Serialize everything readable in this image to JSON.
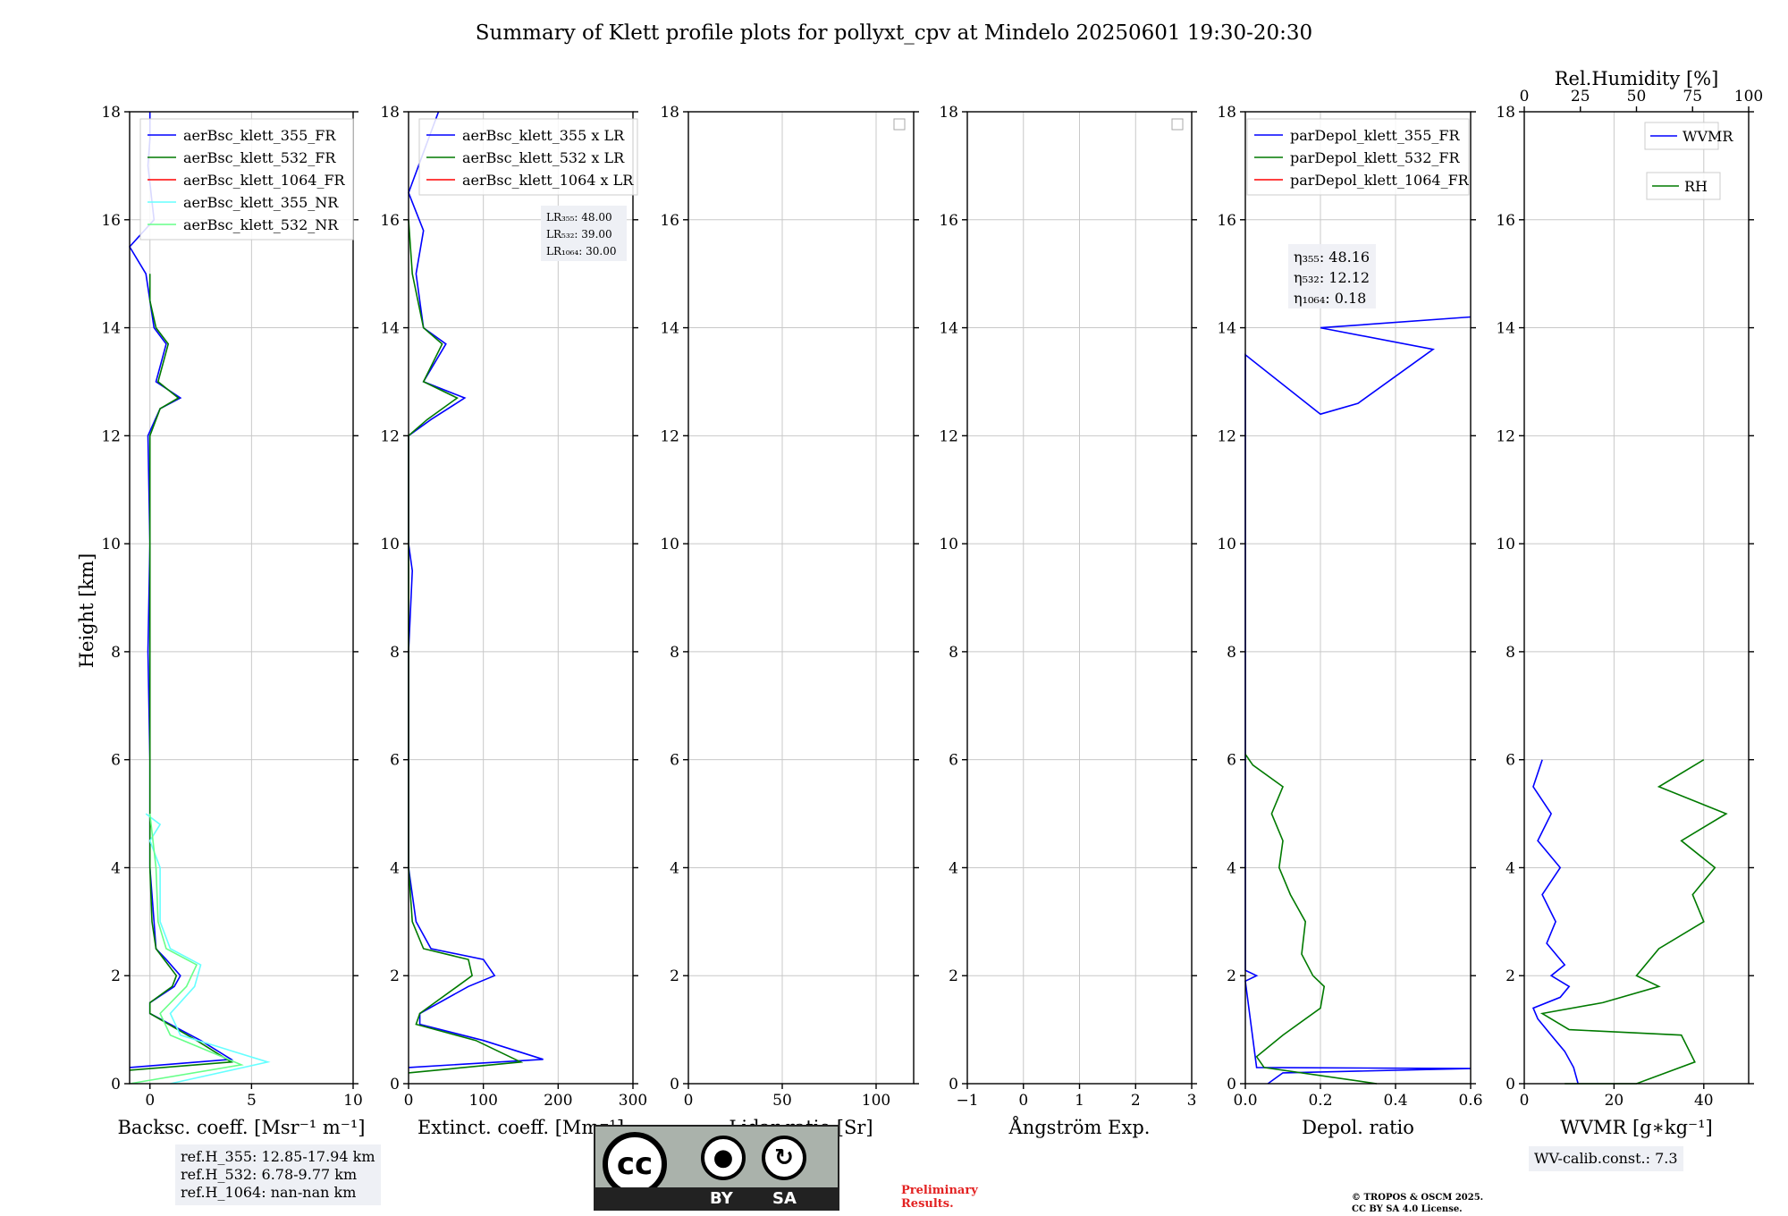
{
  "title": "Summary of Klett profile plots for pollyxt_cpv at Mindelo 20250601 19:30-20:30",
  "y_label": "Height [km]",
  "y_ticks": [
    "0",
    "2",
    "4",
    "6",
    "8",
    "10",
    "12",
    "14",
    "16",
    "18"
  ],
  "notes": {
    "ref_h": [
      "ref.H_355: 12.85-17.94 km",
      "ref.H_532: 6.78-9.77 km",
      "ref.H_1064: nan-nan km"
    ],
    "wv_calib": "WV-calib.const.: 7.3",
    "preliminary": [
      "Preliminary",
      "Results."
    ],
    "copyright": [
      "© TROPOS & OSCM 2025.",
      "CC BY SA 4.0 License."
    ]
  },
  "cc_logo": {
    "cc": "cc",
    "by": "BY",
    "sa": "SA"
  },
  "colors": {
    "blue": "#0000ff",
    "green": "#007a00",
    "red": "#ff0000",
    "cyan": "#66ffff",
    "lightgreen": "#66ff88",
    "grid": "#c8c8c8"
  },
  "chart_data": [
    {
      "type": "line",
      "xlabel": "Backsc. coeff. [Msr⁻¹ m⁻¹]",
      "xlim": [
        -1,
        10
      ],
      "xticks": [
        "0",
        "5",
        "10"
      ],
      "ylim": [
        0,
        18
      ],
      "legend": [
        "aerBsc_klett_355_FR",
        "aerBsc_klett_532_FR",
        "aerBsc_klett_1064_FR",
        "aerBsc_klett_355_NR",
        "aerBsc_klett_532_NR"
      ],
      "series": [
        {
          "name": "aerBsc_klett_355_FR",
          "color": "blue",
          "points": [
            [
              -1,
              0.3
            ],
            [
              4,
              0.45
            ],
            [
              2.5,
              0.8
            ],
            [
              0,
              1.3
            ],
            [
              0,
              1.5
            ],
            [
              1.2,
              1.8
            ],
            [
              1.5,
              2.0
            ],
            [
              0.8,
              2.3
            ],
            [
              0.3,
              2.5
            ],
            [
              0.2,
              3
            ],
            [
              0,
              4
            ],
            [
              0,
              5
            ],
            [
              0,
              6
            ],
            [
              -0.1,
              8
            ],
            [
              0,
              10
            ],
            [
              -0.1,
              12
            ],
            [
              0.5,
              12.5
            ],
            [
              1.5,
              12.7
            ],
            [
              0.3,
              13
            ],
            [
              0.8,
              13.7
            ],
            [
              0.2,
              14
            ],
            [
              -0.2,
              15
            ],
            [
              -1,
              15.5
            ],
            [
              0.2,
              16
            ],
            [
              -0.1,
              17
            ],
            [
              0,
              17.5
            ],
            [
              0,
              18
            ]
          ]
        },
        {
          "name": "aerBsc_klett_532_FR",
          "color": "green",
          "points": [
            [
              -1,
              0.25
            ],
            [
              4,
              0.4
            ],
            [
              2.3,
              0.8
            ],
            [
              0,
              1.3
            ],
            [
              0,
              1.5
            ],
            [
              1.1,
              1.8
            ],
            [
              1.3,
              2.0
            ],
            [
              0.7,
              2.3
            ],
            [
              0.3,
              2.5
            ],
            [
              0.1,
              3
            ],
            [
              0,
              4
            ],
            [
              0,
              6
            ],
            [
              0,
              8
            ],
            [
              0,
              10
            ],
            [
              0,
              12
            ],
            [
              0.5,
              12.5
            ],
            [
              1.4,
              12.7
            ],
            [
              0.4,
              13
            ],
            [
              0.9,
              13.7
            ],
            [
              0.3,
              14
            ],
            [
              0,
              14.5
            ],
            [
              0,
              15
            ]
          ]
        },
        {
          "name": "aerBsc_klett_355_NR",
          "color": "cyan",
          "points": [
            [
              1,
              0
            ],
            [
              5.8,
              0.4
            ],
            [
              1.5,
              0.9
            ],
            [
              1,
              1.3
            ],
            [
              2.2,
              1.8
            ],
            [
              2.5,
              2.2
            ],
            [
              1,
              2.5
            ],
            [
              0.5,
              3
            ],
            [
              0.5,
              4
            ],
            [
              0,
              4.5
            ],
            [
              0.5,
              4.8
            ],
            [
              -0.2,
              5
            ]
          ]
        },
        {
          "name": "aerBsc_klett_532_NR",
          "color": "lightgreen",
          "points": [
            [
              -1,
              0
            ],
            [
              4.5,
              0.35
            ],
            [
              1,
              0.9
            ],
            [
              0.5,
              1.3
            ],
            [
              1.8,
              1.8
            ],
            [
              2.3,
              2.2
            ],
            [
              0.8,
              2.5
            ],
            [
              0.4,
              3
            ],
            [
              0.3,
              4
            ],
            [
              0,
              5
            ]
          ]
        }
      ]
    },
    {
      "type": "line",
      "xlabel": "Extinct. coeff. [Mm⁻¹]",
      "xlim": [
        0,
        300
      ],
      "xticks": [
        "0",
        "100",
        "200",
        "300"
      ],
      "ylim": [
        0,
        18
      ],
      "legend": [
        "aerBsc_klett_355 x LR",
        "aerBsc_klett_532 x LR",
        "aerBsc_klett_1064 x LR"
      ],
      "lr_labels": [
        "LR₃₅₅: 48.00",
        "LR₅₃₂: 39.00",
        "LR₁₀₆₄: 30.00"
      ],
      "series": [
        {
          "name": "aerBsc_klett_355 x LR",
          "color": "blue",
          "points": [
            [
              0,
              0.3
            ],
            [
              180,
              0.45
            ],
            [
              100,
              0.8
            ],
            [
              15,
              1.1
            ],
            [
              15,
              1.3
            ],
            [
              80,
              1.8
            ],
            [
              115,
              2.0
            ],
            [
              100,
              2.3
            ],
            [
              30,
              2.5
            ],
            [
              10,
              3
            ],
            [
              0,
              4
            ],
            [
              0,
              6
            ],
            [
              0,
              8
            ],
            [
              5,
              9.5
            ],
            [
              0,
              10
            ],
            [
              0,
              12
            ],
            [
              30,
              12.3
            ],
            [
              75,
              12.7
            ],
            [
              20,
              13
            ],
            [
              50,
              13.7
            ],
            [
              20,
              14
            ],
            [
              10,
              15
            ],
            [
              20,
              15.8
            ],
            [
              0,
              16.5
            ],
            [
              40,
              18
            ]
          ]
        },
        {
          "name": "aerBsc_klett_532 x LR",
          "color": "green",
          "points": [
            [
              0,
              0.2
            ],
            [
              150,
              0.4
            ],
            [
              90,
              0.8
            ],
            [
              10,
              1.1
            ],
            [
              15,
              1.3
            ],
            [
              65,
              1.8
            ],
            [
              85,
              2.0
            ],
            [
              80,
              2.3
            ],
            [
              20,
              2.5
            ],
            [
              5,
              3
            ],
            [
              0,
              4
            ],
            [
              0,
              6
            ],
            [
              0,
              8
            ],
            [
              0,
              10
            ],
            [
              0,
              12
            ],
            [
              25,
              12.3
            ],
            [
              65,
              12.7
            ],
            [
              20,
              13
            ],
            [
              45,
              13.7
            ],
            [
              20,
              14
            ],
            [
              5,
              15
            ],
            [
              0,
              16
            ]
          ]
        }
      ]
    },
    {
      "type": "line",
      "xlabel": "Lidar ratio [Sr]",
      "xlim": [
        0,
        120
      ],
      "xticks": [
        "0",
        "50",
        "100"
      ],
      "ylim": [
        0,
        18
      ],
      "series": []
    },
    {
      "type": "line",
      "xlabel": "Ångström Exp.",
      "xlim": [
        -1,
        3
      ],
      "xticks": [
        "−1",
        "0",
        "1",
        "2",
        "3"
      ],
      "ylim": [
        0,
        18
      ],
      "series": []
    },
    {
      "type": "line",
      "xlabel": "Depol. ratio",
      "xlim": [
        0,
        0.6
      ],
      "xticks": [
        "0.0",
        "0.2",
        "0.4",
        "0.6"
      ],
      "ylim": [
        0,
        18
      ],
      "legend": [
        "parDepol_klett_355_FR",
        "parDepol_klett_532_FR",
        "parDepol_klett_1064_FR"
      ],
      "eta_labels": [
        "η₃₅₅: 48.16",
        "η₅₃₂: 12.12",
        "η₁₀₆₄: 0.18"
      ],
      "series": [
        {
          "name": "parDepol_klett_355_FR",
          "color": "blue",
          "points": [
            [
              0.06,
              0
            ],
            [
              0.1,
              0.2
            ],
            [
              0.6,
              0.28
            ],
            [
              0.03,
              0.3
            ],
            [
              0.0,
              1.9
            ],
            [
              0.03,
              2.0
            ],
            [
              0.0,
              2.1
            ],
            [
              0.0,
              13.5
            ],
            [
              0.2,
              12.4
            ],
            [
              0.3,
              12.6
            ],
            [
              0.5,
              13.6
            ],
            [
              0.2,
              14
            ],
            [
              0.6,
              14.2
            ]
          ]
        },
        {
          "name": "parDepol_klett_532_FR",
          "color": "green",
          "points": [
            [
              0.35,
              0
            ],
            [
              0.05,
              0.3
            ],
            [
              0.03,
              0.5
            ],
            [
              0.1,
              0.9
            ],
            [
              0.2,
              1.4
            ],
            [
              0.21,
              1.8
            ],
            [
              0.18,
              2.0
            ],
            [
              0.15,
              2.4
            ],
            [
              0.16,
              3
            ],
            [
              0.12,
              3.5
            ],
            [
              0.09,
              4
            ],
            [
              0.1,
              4.5
            ],
            [
              0.07,
              5
            ],
            [
              0.1,
              5.5
            ],
            [
              0.02,
              5.9
            ],
            [
              0.0,
              6.1
            ]
          ]
        }
      ]
    },
    {
      "type": "line",
      "xlabel": "WVMR [g∗kg⁻¹]",
      "xlim": [
        0,
        50
      ],
      "xticks": [
        "0",
        "20",
        "40"
      ],
      "x2label": "Rel.Humidity [%]",
      "x2lim": [
        0,
        100
      ],
      "x2ticks": [
        "0",
        "25",
        "50",
        "75",
        "100"
      ],
      "ylim": [
        0,
        18
      ],
      "legend": [
        "WVMR",
        "RH"
      ],
      "series": [
        {
          "name": "WVMR",
          "color": "blue",
          "points": [
            [
              12,
              0
            ],
            [
              11,
              0.3
            ],
            [
              9,
              0.6
            ],
            [
              6,
              0.9
            ],
            [
              3,
              1.2
            ],
            [
              2,
              1.4
            ],
            [
              8,
              1.6
            ],
            [
              10,
              1.8
            ],
            [
              6,
              2.0
            ],
            [
              9,
              2.2
            ],
            [
              5,
              2.6
            ],
            [
              7,
              3
            ],
            [
              4,
              3.5
            ],
            [
              8,
              4
            ],
            [
              3,
              4.5
            ],
            [
              6,
              5
            ],
            [
              2,
              5.5
            ],
            [
              4,
              6
            ]
          ]
        },
        {
          "name": "RH",
          "color": "green",
          "points": [
            [
              18,
              0
            ],
            [
              50,
              0
            ],
            [
              76,
              0.4
            ],
            [
              70,
              0.9
            ],
            [
              20,
              1.0
            ],
            [
              8,
              1.3
            ],
            [
              35,
              1.5
            ],
            [
              60,
              1.8
            ],
            [
              50,
              2
            ],
            [
              60,
              2.5
            ],
            [
              80,
              3
            ],
            [
              75,
              3.5
            ],
            [
              85,
              4
            ],
            [
              70,
              4.5
            ],
            [
              90,
              5
            ],
            [
              60,
              5.5
            ],
            [
              80,
              6
            ]
          ]
        }
      ]
    }
  ]
}
